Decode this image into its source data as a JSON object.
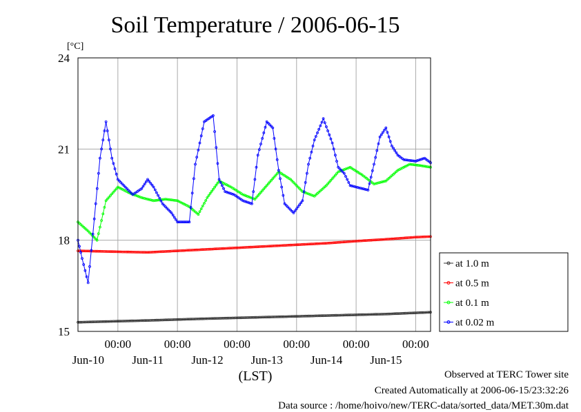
{
  "chart_data": {
    "type": "line",
    "title": "Soil Temperature / 2006-06-15",
    "ylabel": "[°C]",
    "xlabel": "(LST)",
    "ylim": [
      15,
      24
    ],
    "yticks": [
      15,
      18,
      21,
      24
    ],
    "xlim": [
      -0.67,
      5.25
    ],
    "time_ticks": [
      {
        "x": 0.0,
        "time": "00:00",
        "date": "Jun-10"
      },
      {
        "x": 1.0,
        "time": "00:00",
        "date": "Jun-11"
      },
      {
        "x": 2.0,
        "time": "00:00",
        "date": "Jun-12"
      },
      {
        "x": 3.0,
        "time": "00:00",
        "date": "Jun-13"
      },
      {
        "x": 4.0,
        "time": "00:00",
        "date": "Jun-14"
      },
      {
        "x": 5.0,
        "time": "00:00",
        "date": "Jun-15"
      }
    ],
    "series": [
      {
        "name": "at 1.0 m",
        "color": "#333333",
        "x": [
          -0.67,
          0.5,
          1.5,
          2.5,
          3.5,
          4.5,
          5.25
        ],
        "y": [
          15.3,
          15.36,
          15.42,
          15.47,
          15.52,
          15.57,
          15.63
        ]
      },
      {
        "name": "at 0.5 m",
        "color": "#ff0000",
        "x": [
          -0.67,
          0.0,
          0.5,
          1.0,
          1.5,
          2.0,
          2.5,
          3.0,
          3.5,
          4.0,
          4.5,
          5.0,
          5.25
        ],
        "y": [
          17.65,
          17.62,
          17.6,
          17.65,
          17.7,
          17.75,
          17.8,
          17.85,
          17.9,
          17.97,
          18.03,
          18.1,
          18.12
        ]
      },
      {
        "name": "at 0.1 m",
        "color": "#00ff00",
        "x": [
          -0.67,
          -0.5,
          -0.35,
          -0.2,
          0.0,
          0.2,
          0.4,
          0.6,
          0.8,
          1.0,
          1.2,
          1.35,
          1.5,
          1.7,
          1.9,
          2.1,
          2.3,
          2.5,
          2.7,
          2.9,
          3.1,
          3.3,
          3.5,
          3.7,
          3.9,
          4.1,
          4.3,
          4.5,
          4.7,
          4.9,
          5.1,
          5.25
        ],
        "y": [
          18.6,
          18.3,
          18.0,
          19.3,
          19.75,
          19.55,
          19.4,
          19.3,
          19.35,
          19.3,
          19.1,
          18.85,
          19.4,
          19.95,
          19.75,
          19.5,
          19.35,
          19.8,
          20.25,
          20.0,
          19.6,
          19.45,
          19.8,
          20.25,
          20.4,
          20.15,
          19.85,
          19.95,
          20.3,
          20.5,
          20.45,
          20.4
        ]
      },
      {
        "name": "at 0.02 m",
        "color": "#0000ff",
        "x": [
          -0.67,
          -0.6,
          -0.5,
          -0.42,
          -0.3,
          -0.2,
          -0.1,
          0.0,
          0.1,
          0.25,
          0.4,
          0.5,
          0.6,
          0.75,
          0.9,
          1.0,
          1.2,
          1.3,
          1.45,
          1.6,
          1.7,
          1.8,
          1.95,
          2.1,
          2.25,
          2.35,
          2.5,
          2.6,
          2.7,
          2.8,
          2.95,
          3.1,
          3.2,
          3.3,
          3.45,
          3.6,
          3.7,
          3.8,
          3.9,
          4.0,
          4.2,
          4.3,
          4.4,
          4.5,
          4.6,
          4.7,
          4.8,
          5.0,
          5.15,
          5.25
        ],
        "y": [
          18.0,
          17.4,
          16.6,
          18.2,
          20.7,
          21.9,
          20.7,
          20.0,
          19.8,
          19.5,
          19.7,
          20.0,
          19.75,
          19.2,
          18.9,
          18.6,
          18.6,
          20.5,
          21.9,
          22.1,
          20.0,
          19.6,
          19.5,
          19.3,
          19.2,
          20.8,
          21.9,
          21.7,
          20.3,
          19.2,
          18.9,
          19.3,
          20.5,
          21.3,
          22.0,
          21.2,
          20.4,
          20.2,
          19.8,
          19.75,
          19.65,
          20.5,
          21.4,
          21.7,
          21.1,
          20.8,
          20.65,
          20.6,
          20.7,
          20.55
        ]
      }
    ],
    "legend_placement": "right"
  },
  "footer": {
    "line1": "Observed at TERC Tower site",
    "line2": "Created Automatically at 2006-06-15/23:32:26",
    "line3": "Data source : /home/hoivo/new/TERC-data/sorted_data/MET.30m.dat"
  }
}
